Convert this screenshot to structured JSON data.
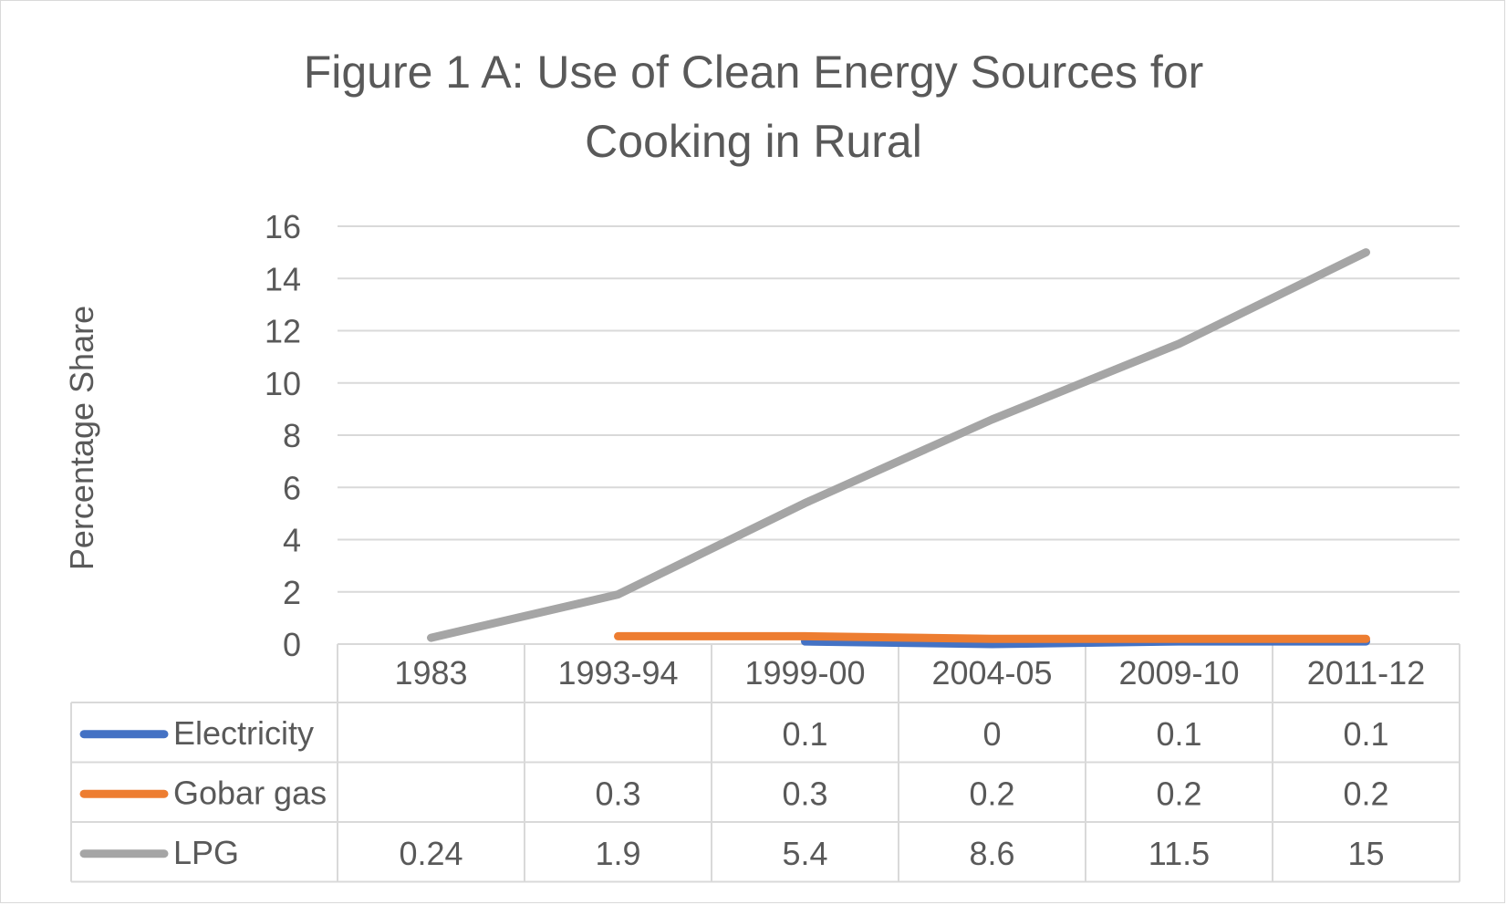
{
  "chart_data": {
    "type": "line",
    "title_lines": [
      "Figure 1 A: Use of Clean Energy Sources for",
      "Cooking in Rural"
    ],
    "ylabel": "Percentage Share",
    "xlabel": "",
    "categories": [
      "1983",
      "1993-94",
      "1999-00",
      "2004-05",
      "2009-10",
      "2011-12"
    ],
    "ylim": [
      0,
      16
    ],
    "yticks": [
      "0",
      "2",
      "4",
      "6",
      "8",
      "10",
      "12",
      "14",
      "16"
    ],
    "grid": true,
    "legend": "data-table",
    "series": [
      {
        "name": "Electricity",
        "color": "#4472c4",
        "values": [
          null,
          null,
          0.1,
          0,
          0.1,
          0.1
        ],
        "labels": [
          "",
          "",
          "0.1",
          "0",
          "0.1",
          "0.1"
        ]
      },
      {
        "name": "Gobar gas",
        "color": "#ed7d31",
        "values": [
          null,
          0.3,
          0.3,
          0.2,
          0.2,
          0.2
        ],
        "labels": [
          "",
          "0.3",
          "0.3",
          "0.2",
          "0.2",
          "0.2"
        ]
      },
      {
        "name": "LPG",
        "color": "#a5a5a5",
        "values": [
          0.24,
          1.9,
          5.4,
          8.6,
          11.5,
          15
        ],
        "labels": [
          "0.24",
          "1.9",
          "5.4",
          "8.6",
          "11.5",
          "15"
        ]
      }
    ]
  }
}
